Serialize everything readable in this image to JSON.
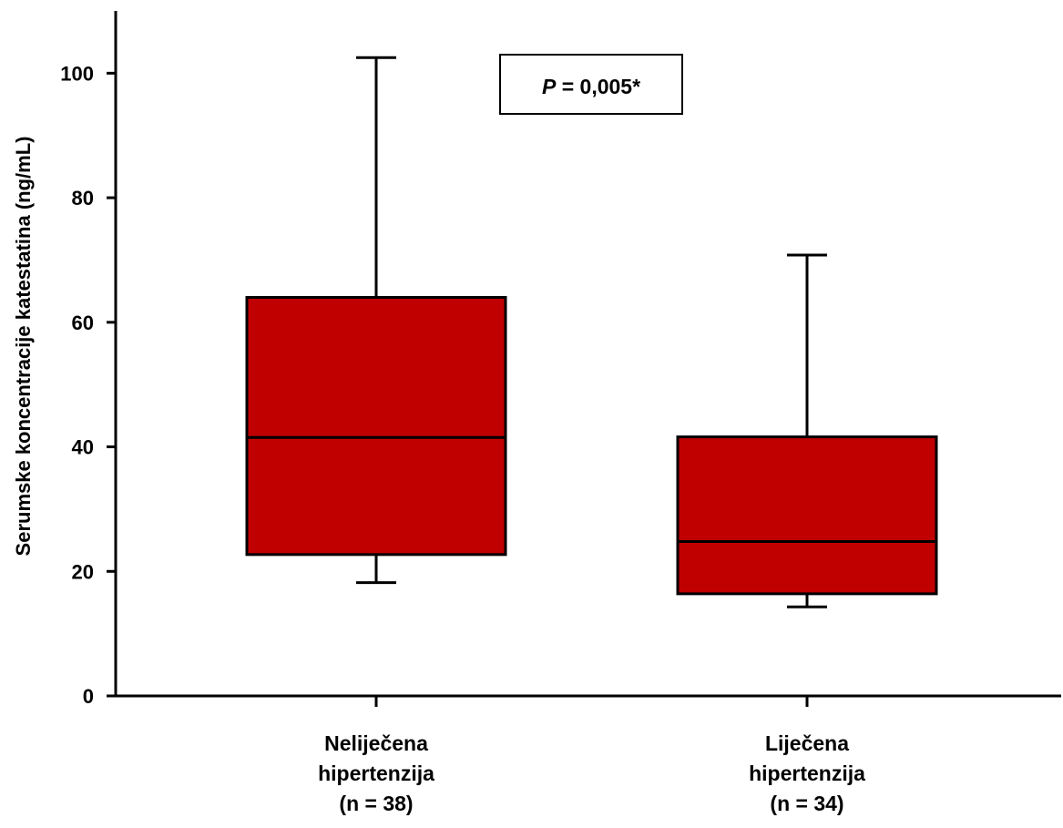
{
  "chart_data": {
    "type": "box",
    "ylabel": "Serumske koncentracije katestatina (ng/mL)",
    "ylim": [
      0,
      110
    ],
    "yticks": [
      0,
      20,
      40,
      60,
      80,
      100
    ],
    "ytick_labels": [
      "0",
      "20",
      "40",
      "60",
      "80",
      "100"
    ],
    "grid": false,
    "categories": [
      {
        "lines": [
          "Neliječena",
          "hipertenzija",
          "(n = 38)"
        ]
      },
      {
        "lines": [
          "Liječena",
          "hipertenzija",
          "(n = 34)"
        ]
      }
    ],
    "boxes": [
      {
        "whisker_low": 18.2,
        "q1": 22.7,
        "median": 41.5,
        "q3": 64.0,
        "whisker_high": 102.5
      },
      {
        "whisker_low": 14.3,
        "q1": 16.4,
        "median": 24.8,
        "q3": 41.6,
        "whisker_high": 70.8
      }
    ],
    "annotation": {
      "p_label": "P",
      "p_value": " = 0,005*"
    },
    "colors": {
      "box_fill": "#c00000",
      "line": "#000000"
    }
  }
}
